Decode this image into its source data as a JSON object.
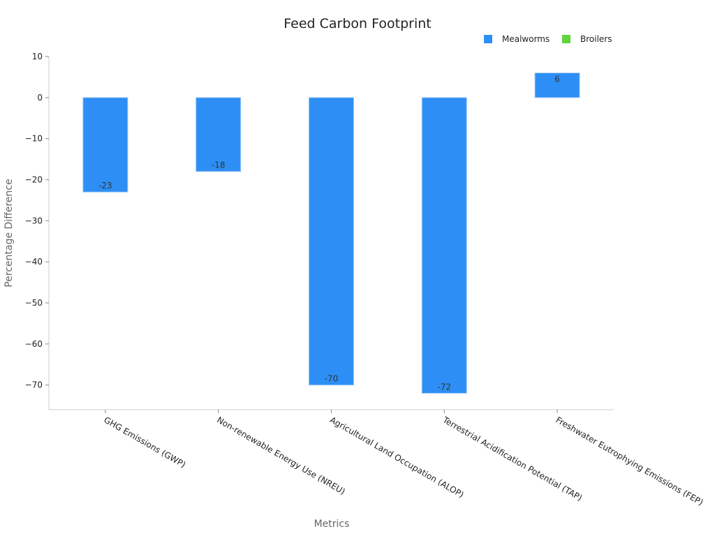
{
  "chart_data": {
    "type": "bar",
    "title": "Feed Carbon Footprint",
    "xlabel": "Metrics",
    "ylabel": "Percentage Difference",
    "ylim": [
      -76,
      10
    ],
    "yticks": [
      10,
      0,
      -10,
      -20,
      -30,
      -40,
      -50,
      -60,
      -70
    ],
    "ytick_labels": [
      "10",
      "0",
      "−10",
      "−20",
      "−30",
      "−40",
      "−50",
      "−60",
      "−70"
    ],
    "grid": false,
    "legend_position": "top-right",
    "categories": [
      "GHG Emissions (GWP)",
      "Non-renewable Energy Use (NREU)",
      "Agricultural Land Occupation (ALOP)",
      "Terrestrial Acidification Potential (TAP)",
      "Freshwater Eutrophying Emissions (FEP)"
    ],
    "series": [
      {
        "name": "Mealworms",
        "color": "#2d8ff5",
        "values": [
          -23,
          -18,
          -70,
          -72,
          6
        ],
        "labels": [
          "-23",
          "-18",
          "-70",
          "-72",
          "6"
        ]
      },
      {
        "name": "Broilers",
        "color": "#5fd63a",
        "values": [
          null,
          null,
          null,
          null,
          null
        ],
        "labels": []
      }
    ]
  }
}
